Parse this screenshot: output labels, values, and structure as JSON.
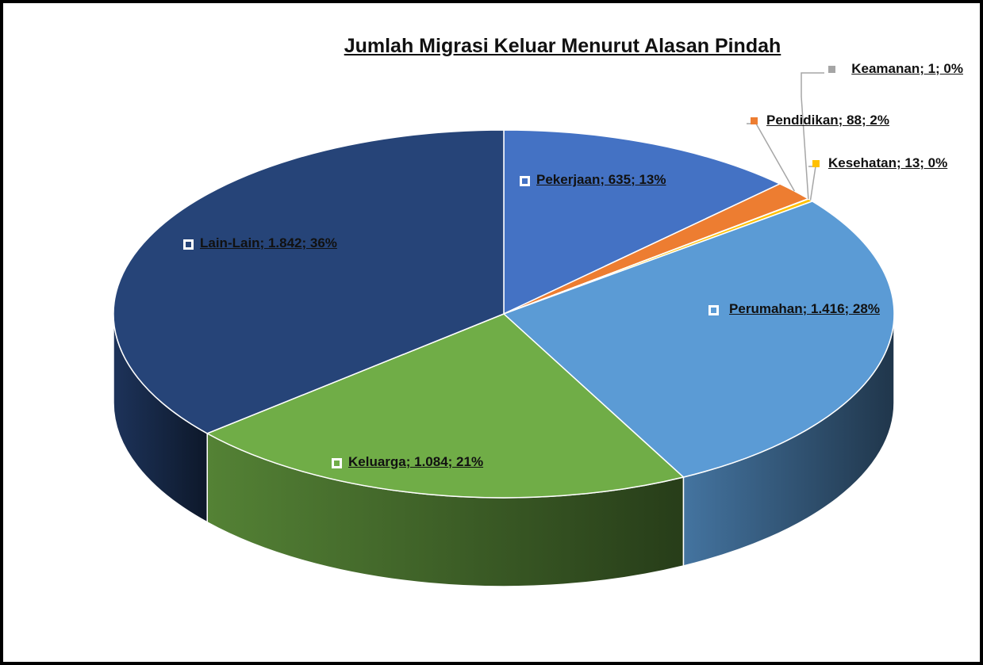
{
  "chart_data": {
    "type": "pie3d",
    "title": "Jumlah Migrasi Keluar Menurut Alasan Pindah",
    "values": [
      635,
      88,
      1,
      13,
      1416,
      1084,
      1842
    ],
    "value_labels": [
      "Pekerjaan; 635; 13%",
      "Pendidikan; 88; 2%",
      "Keamanan; 1; 0%",
      "Kesehatan; 13; 0%",
      "Perumahan; 1.416; 28%",
      "Keluarga; 1.084; 21%",
      "Lain-Lain; 1.842; 36%"
    ],
    "colors": [
      "#4472c4",
      "#ed7d31",
      "#a5a5a5",
      "#ffc000",
      "#5b9bd5",
      "#70ad47",
      "#264478"
    ]
  }
}
